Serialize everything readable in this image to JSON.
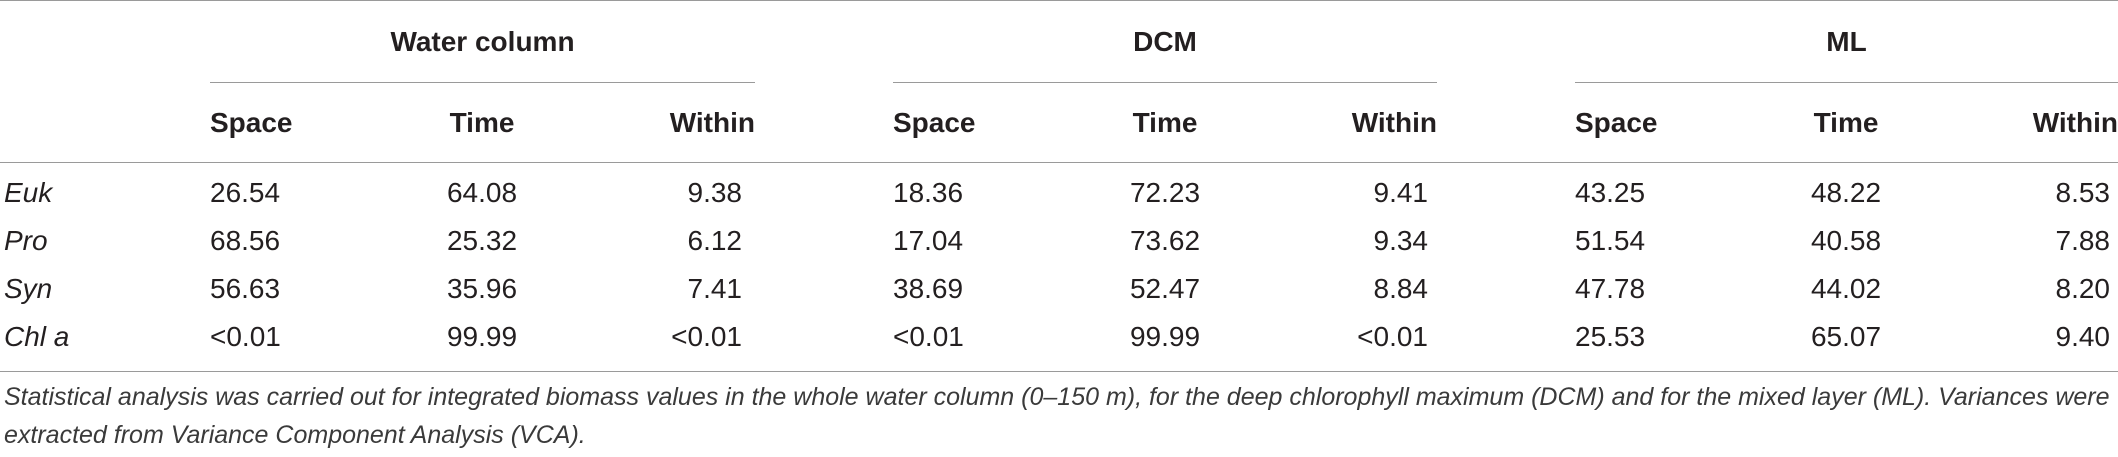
{
  "table": {
    "groups": [
      "Water column",
      "DCM",
      "ML"
    ],
    "subheaders": [
      "Space",
      "Time",
      "Within",
      "Space",
      "Time",
      "Within",
      "Space",
      "Time",
      "Within"
    ],
    "rows": [
      {
        "label": "Euk",
        "values": [
          "26.54",
          "64.08",
          "9.38",
          "18.36",
          "72.23",
          "9.41",
          "43.25",
          "48.22",
          "8.53"
        ]
      },
      {
        "label": "Pro",
        "values": [
          "68.56",
          "25.32",
          "6.12",
          "17.04",
          "73.62",
          "9.34",
          "51.54",
          "40.58",
          "7.88"
        ]
      },
      {
        "label": "Syn",
        "values": [
          "56.63",
          "35.96",
          "7.41",
          "38.69",
          "52.47",
          "8.84",
          "47.78",
          "44.02",
          "8.20"
        ]
      },
      {
        "label": "Chl a",
        "values": [
          "<0.01",
          "99.99",
          "<0.01",
          "<0.01",
          "99.99",
          "<0.01",
          "25.53",
          "65.07",
          "9.40"
        ]
      }
    ],
    "footnote": "Statistical analysis was carried out for integrated biomass values in the whole water column (0–150 m), for the deep chlorophyll maximum (DCM) and for the mixed layer (ML). Variances were extracted from Variance Component Analysis (VCA)."
  }
}
